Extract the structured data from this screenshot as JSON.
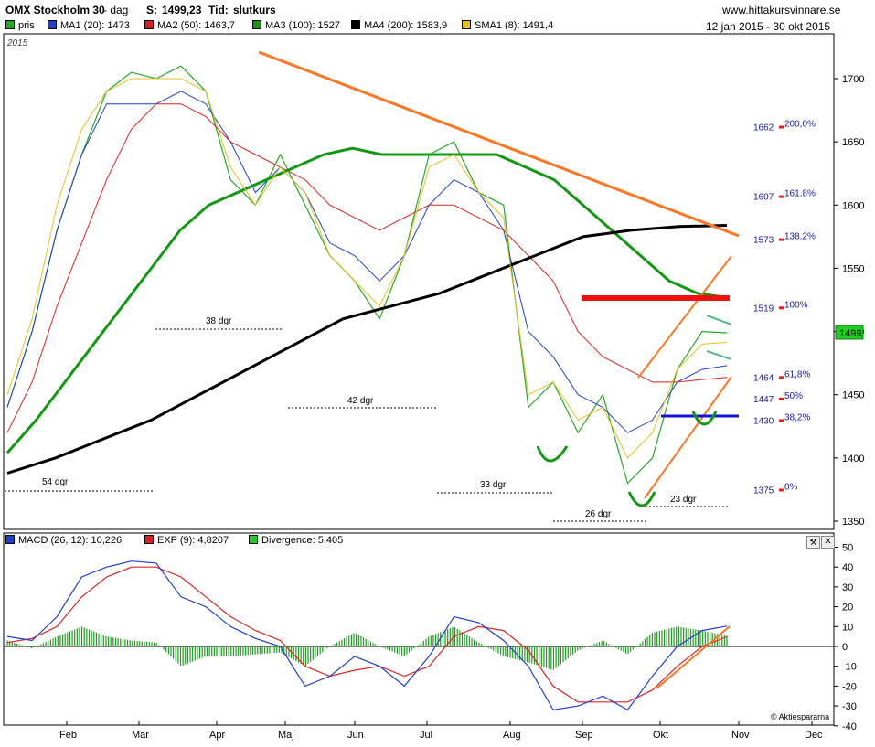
{
  "header": {
    "title": "OMX Stockholm 30",
    "period": "- dag",
    "last_label": "S:",
    "last_value": "1499,23",
    "time_label": "Tid:",
    "time_value": "slutkurs",
    "site": "www.hittakursvinnare.se",
    "daterange": "12 jan 2015 - 30 okt 2015",
    "year": "2015"
  },
  "legend_top": [
    {
      "label": "pris",
      "color": "#22aa22"
    },
    {
      "label": "MA1 (20): 1473",
      "color": "#1f3fd0"
    },
    {
      "label": "MA2 (50): 1463,7",
      "color": "#dd2222"
    },
    {
      "label": "MA3 (100): 1527",
      "color": "#119911"
    },
    {
      "label": "MA4 (200): 1583,9",
      "color": "#000000"
    },
    {
      "label": "SMA1 (8): 1491,4",
      "color": "#e8c020"
    }
  ],
  "legend_macd": [
    {
      "label": "MACD (26, 12): 10,226",
      "color": "#1f3fd0"
    },
    {
      "label": "EXP (9): 4,8207",
      "color": "#dd2222"
    },
    {
      "label": "Divergence: 5,405",
      "color": "#22cc22"
    }
  ],
  "chart_data": [
    {
      "type": "line",
      "title": "OMX Stockholm 30",
      "x_ticks": [
        "Feb",
        "Mar",
        "Apr",
        "Maj",
        "Jun",
        "Jul",
        "Aug",
        "Sep",
        "Okt",
        "Nov",
        "Dec"
      ],
      "y_ticks": [
        1350,
        1400,
        1450,
        1500,
        1550,
        1600,
        1650,
        1700
      ],
      "ylim": [
        1345,
        1725
      ],
      "last_price_tag": "1499",
      "fib_levels": [
        {
          "value": 1662,
          "label": "200,0%"
        },
        {
          "value": 1607,
          "label": "161,8%"
        },
        {
          "value": 1573,
          "label": "138,2%"
        },
        {
          "value": 1519,
          "label": "100%"
        },
        {
          "value": 1464,
          "label": "61,8%"
        },
        {
          "value": 1447,
          "label": "50%"
        },
        {
          "value": 1430,
          "label": "38,2%"
        },
        {
          "value": 1375,
          "label": "0%"
        }
      ],
      "annotations": [
        "38 dgr",
        "42 dgr",
        "54 dgr",
        "33 dgr",
        "26 dgr",
        "23 dgr"
      ],
      "series_approx": [
        {
          "name": "pris",
          "values": [
            1440,
            1500,
            1580,
            1640,
            1690,
            1705,
            1700,
            1710,
            1690,
            1620,
            1600,
            1640,
            1600,
            1560,
            1540,
            1510,
            1560,
            1640,
            1650,
            1610,
            1600,
            1440,
            1460,
            1420,
            1450,
            1380,
            1400,
            1470,
            1500,
            1499
          ]
        },
        {
          "name": "MA1 (20)",
          "values": [
            1440,
            1500,
            1580,
            1640,
            1680,
            1680,
            1680,
            1690,
            1680,
            1650,
            1610,
            1630,
            1610,
            1570,
            1560,
            1540,
            1560,
            1600,
            1620,
            1610,
            1580,
            1500,
            1480,
            1450,
            1440,
            1420,
            1430,
            1460,
            1470,
            1473
          ]
        },
        {
          "name": "MA2 (50)",
          "values": [
            1420,
            1460,
            1520,
            1570,
            1620,
            1660,
            1680,
            1680,
            1670,
            1650,
            1640,
            1630,
            1620,
            1600,
            1590,
            1580,
            1590,
            1600,
            1600,
            1590,
            1580,
            1560,
            1540,
            1500,
            1480,
            1470,
            1460,
            1460,
            1462,
            1463.7
          ]
        },
        {
          "name": "MA3 (100)",
          "values": [
            1404,
            1430,
            1460,
            1490,
            1520,
            1550,
            1580,
            1600,
            1610,
            1620,
            1630,
            1640,
            1645,
            1640,
            1640,
            1640,
            1640,
            1640,
            1630,
            1620,
            1600,
            1580,
            1560,
            1540,
            1530,
            1527
          ]
        },
        {
          "name": "MA4 (200)",
          "values": [
            1388,
            1400,
            1415,
            1430,
            1450,
            1470,
            1490,
            1510,
            1520,
            1530,
            1545,
            1560,
            1575,
            1580,
            1583,
            1583.9
          ]
        },
        {
          "name": "SMA1 (8)",
          "values": [
            1450,
            1510,
            1600,
            1660,
            1690,
            1700,
            1700,
            1700,
            1690,
            1630,
            1600,
            1630,
            1610,
            1560,
            1540,
            1520,
            1560,
            1630,
            1640,
            1610,
            1590,
            1450,
            1460,
            1430,
            1440,
            1400,
            1420,
            1470,
            1490,
            1491.4
          ]
        }
      ]
    },
    {
      "type": "line",
      "title": "MACD",
      "y_ticks": [
        50,
        40,
        30,
        20,
        10,
        0,
        -10,
        -20,
        -30,
        -40
      ],
      "ylim": [
        -40,
        50
      ],
      "series_approx": [
        {
          "name": "MACD (26, 12)",
          "values": [
            5,
            3,
            15,
            35,
            40,
            43,
            42,
            25,
            20,
            10,
            4,
            0,
            -20,
            -15,
            -5,
            -10,
            -20,
            -5,
            15,
            12,
            3,
            -10,
            -32,
            -30,
            -25,
            -32,
            -15,
            0,
            8,
            10.226
          ]
        },
        {
          "name": "EXP (9)",
          "values": [
            2,
            4,
            10,
            25,
            35,
            40,
            40,
            35,
            25,
            15,
            8,
            3,
            -10,
            -15,
            -12,
            -10,
            -15,
            -10,
            5,
            10,
            8,
            -2,
            -20,
            -28,
            -28,
            -28,
            -22,
            -10,
            0,
            4.8207
          ]
        },
        {
          "name": "Divergence",
          "values": [
            3,
            -1,
            5,
            10,
            5,
            3,
            2,
            -10,
            -5,
            -5,
            -4,
            -3,
            -10,
            0,
            7,
            0,
            -5,
            5,
            10,
            2,
            -5,
            -8,
            -12,
            -2,
            3,
            -4,
            7,
            10,
            8,
            5.405
          ]
        }
      ]
    }
  ],
  "copyright": "© Aktiespararna"
}
